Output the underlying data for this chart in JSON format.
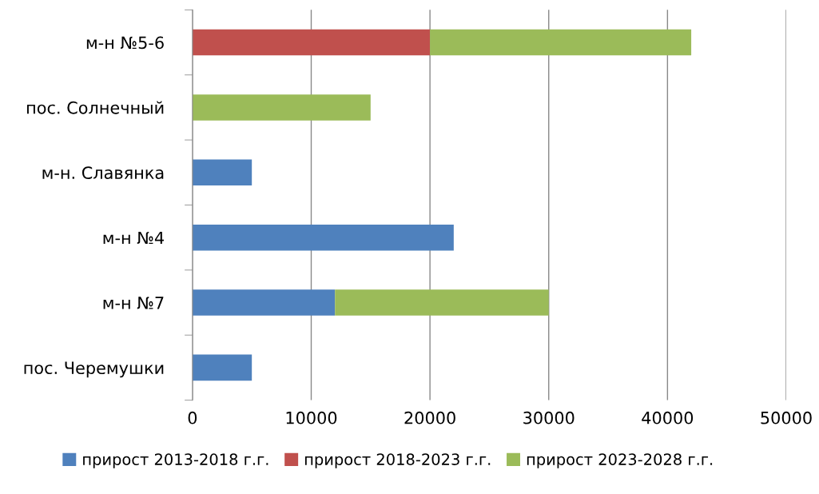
{
  "chart_data": {
    "type": "bar",
    "orientation": "horizontal",
    "stacked": true,
    "categories": [
      "м-н №5-6",
      "пос. Солнечный",
      "м-н. Славянка",
      "м-н №4",
      "м-н №7",
      "пос. Черемушки"
    ],
    "series": [
      {
        "name": "прирост 2013-2018 г.г.",
        "color": "#4f81bd",
        "values": [
          null,
          null,
          5000,
          22000,
          12000,
          5000
        ]
      },
      {
        "name": "прирост 2018-2023 г.г.",
        "color": "#c0504d",
        "values": [
          20000,
          null,
          null,
          null,
          null,
          null
        ]
      },
      {
        "name": "прирост 2023-2028 г.г.",
        "color": "#9bbb59",
        "values": [
          22000,
          15000,
          null,
          null,
          18000,
          null
        ]
      }
    ],
    "xlim": [
      0,
      50000
    ],
    "xticks": [
      0,
      10000,
      20000,
      30000,
      40000,
      50000
    ],
    "grid": "x",
    "legend": "bottom"
  }
}
